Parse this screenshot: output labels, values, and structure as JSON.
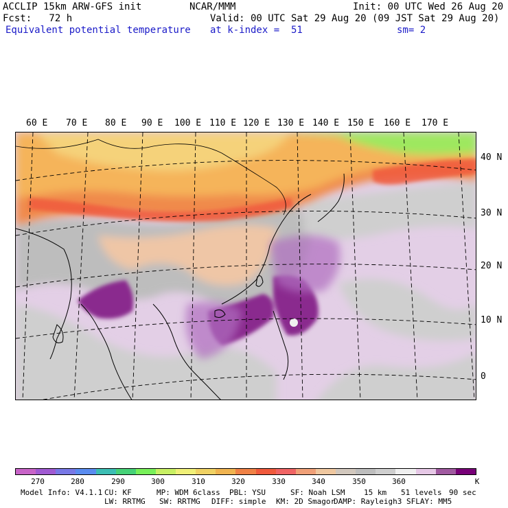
{
  "header": {
    "model_title": "ACCLIP 15km ARW-GFS init",
    "center": "NCAR/MMM",
    "init": "Init: 00 UTC Wed 26 Aug 20",
    "fcst": "Fcst:   72 h",
    "valid": "Valid: 00 UTC Sat 29 Aug 20 (09 JST Sat 29 Aug 20)",
    "field": "Equivalent potential temperature",
    "level": "at k-index =  51",
    "smooth": "sm= 2"
  },
  "map": {
    "lon_labels": [
      "60 E",
      "70 E",
      "80 E",
      "90 E",
      "100 E",
      "110 E",
      "120 E",
      "130 E",
      "140 E",
      "150 E",
      "160 E",
      "170 E"
    ],
    "lat_labels": [
      "40 N",
      "30 N",
      "20 N",
      "10 N",
      "0"
    ]
  },
  "colorbar": {
    "colors": [
      "#c864c8",
      "#a05ad2",
      "#7878e6",
      "#5a8cf0",
      "#3cbeb4",
      "#46d278",
      "#78f05a",
      "#c8f064",
      "#f0f078",
      "#f0d264",
      "#f0b450",
      "#f08246",
      "#f05a3c",
      "#f06464",
      "#f0a078",
      "#f0c8a0",
      "#d2c8be",
      "#bebebe",
      "#cfcfcf",
      "#f0f0f0",
      "#e6c8e6",
      "#a05aa0",
      "#780078"
    ],
    "ticks": [
      "270",
      "280",
      "290",
      "300",
      "310",
      "320",
      "330",
      "340",
      "350",
      "360"
    ],
    "unit": "K"
  },
  "footer": {
    "model_info": "Model Info: V4.1.1",
    "cu": "CU: KF",
    "mp": "MP: WDM 6class",
    "pbl": "PBL: YSU",
    "sf": "SF: Noah LSM",
    "res": "15 km",
    "levels": "51 levels",
    "dt": "90 sec",
    "lw": "LW: RRTMG",
    "sw": "SW: RRTMG",
    "diff": "DIFF: simple",
    "km": "KM: 2D Smagor",
    "damp": "DAMP: Rayleigh3",
    "sflay": "SFLAY: MM5"
  }
}
